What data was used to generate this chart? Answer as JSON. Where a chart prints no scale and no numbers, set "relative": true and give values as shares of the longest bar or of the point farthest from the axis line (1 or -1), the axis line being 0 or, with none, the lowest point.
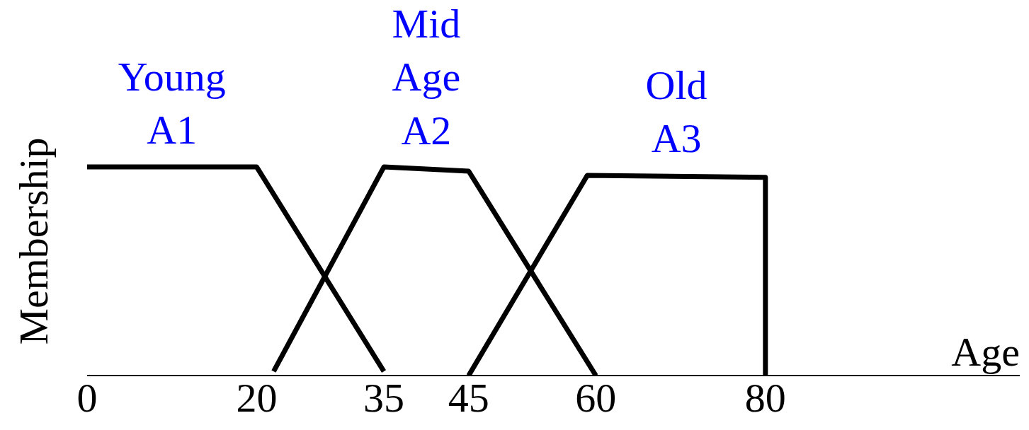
{
  "chart_data": {
    "type": "line",
    "xlabel": "Age",
    "ylabel": "Membership",
    "relative": true,
    "xlim": [
      0,
      110
    ],
    "xticks": [
      0,
      20,
      35,
      45,
      60,
      80
    ],
    "series": [
      {
        "name": "Young A1",
        "color": "#000000",
        "x": [
          0,
          20,
          35
        ],
        "values": [
          1,
          1,
          0.02
        ]
      },
      {
        "name": "Mid Age A2",
        "color": "#000000",
        "x": [
          22,
          35,
          45,
          60
        ],
        "values": [
          0.02,
          1,
          0.98,
          0
        ]
      },
      {
        "name": "Old A3",
        "color": "#000000",
        "x": [
          45,
          59,
          80,
          80
        ],
        "values": [
          0,
          0.96,
          0.95,
          0
        ]
      }
    ]
  }
}
